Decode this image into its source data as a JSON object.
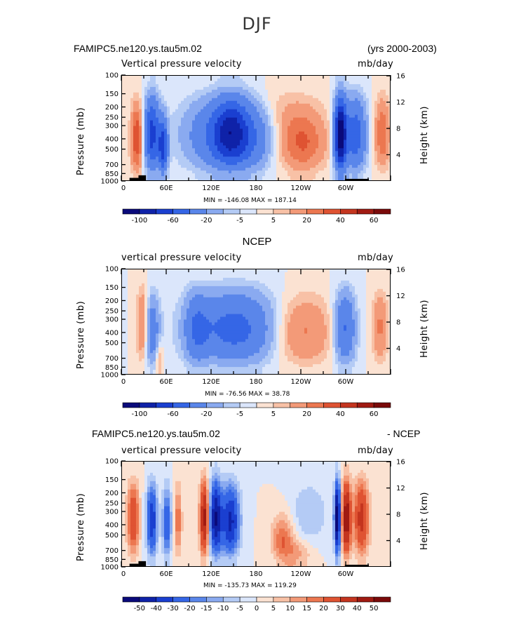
{
  "figure": {
    "title": "DJF",
    "colors": {
      "cb1": [
        "#0a0a7a",
        "#0f22a8",
        "#1a3fd0",
        "#3566e6",
        "#5a86ea",
        "#8aaaf0",
        "#b4cbf5",
        "#dbe6fb",
        "#fbe2d2",
        "#f8c1a6",
        "#f39a78",
        "#ec7750",
        "#df5332",
        "#c4351f",
        "#a01a12",
        "#7a0a0a"
      ],
      "cb3": [
        "#0a0a7a",
        "#0f22a8",
        "#1a3fd0",
        "#3566e6",
        "#5a86ea",
        "#8aaaf0",
        "#b4cbf5",
        "#dbe6fb",
        "#fbe2d2",
        "#f8c1a6",
        "#f39a78",
        "#ec7750",
        "#df5332",
        "#c4351f",
        "#a01a12",
        "#7a0a0a"
      ]
    }
  },
  "chart_data": [
    {
      "type": "heatmap",
      "case": "FAMIPC5.ne120.ys.tau5m.02",
      "years": "(yrs 2000-2003)",
      "variable": "Vertical pressure velocity",
      "units": "mb/day",
      "ylabel_left": "Pressure (mb)",
      "ylabel_right": "Height (km)",
      "x_ticks": [
        "0",
        "60E",
        "120E",
        "180",
        "120W",
        "60W"
      ],
      "x_range": [
        0,
        360
      ],
      "pressure_levels": [
        "100",
        "150",
        "200",
        "250",
        "300",
        "400",
        "500",
        "700",
        "850",
        "1000"
      ],
      "height_ticks": [
        "4",
        "8",
        "12",
        "16"
      ],
      "stats": "MIN = -146.08   MAX = 187.14",
      "colorbar_labels": [
        "-100",
        "-60",
        "-20",
        "-5",
        "5",
        "20",
        "40",
        "60"
      ]
    },
    {
      "type": "heatmap",
      "case": "NCEP",
      "variable": "vertical pressure velocity",
      "units": "mb/day",
      "ylabel_left": "Pressure (mb)",
      "ylabel_right": "Height (km)",
      "x_ticks": [
        "0",
        "60E",
        "120E",
        "180",
        "120W",
        "60W"
      ],
      "x_range": [
        0,
        360
      ],
      "pressure_levels": [
        "100",
        "150",
        "200",
        "250",
        "300",
        "400",
        "500",
        "700",
        "850",
        "1000"
      ],
      "height_ticks": [
        "4",
        "8",
        "12",
        "16"
      ],
      "stats": "MIN = -76.56   MAX =  38.78",
      "colorbar_labels": [
        "-100",
        "-60",
        "-20",
        "-5",
        "5",
        "20",
        "40",
        "60"
      ]
    },
    {
      "type": "heatmap",
      "case": "FAMIPC5.ne120.ys.tau5m.02",
      "case_suffix": "- NCEP",
      "variable": "vertical pressure velocity",
      "units": "mb/day",
      "ylabel_left": "Pressure (mb)",
      "ylabel_right": "Height (km)",
      "x_ticks": [
        "0",
        "60E",
        "120E",
        "180",
        "120W",
        "60W"
      ],
      "x_range": [
        0,
        360
      ],
      "pressure_levels": [
        "100",
        "150",
        "200",
        "250",
        "300",
        "400",
        "500",
        "700",
        "850",
        "1000"
      ],
      "height_ticks": [
        "4",
        "8",
        "12",
        "16"
      ],
      "stats": "MIN = -135.73   MAX = 119.29",
      "colorbar_labels": [
        "-50",
        "-40",
        "-30",
        "-20",
        "-15",
        "-10",
        "-5",
        "0",
        "5",
        "10",
        "15",
        "20",
        "30",
        "40",
        "50"
      ]
    }
  ]
}
